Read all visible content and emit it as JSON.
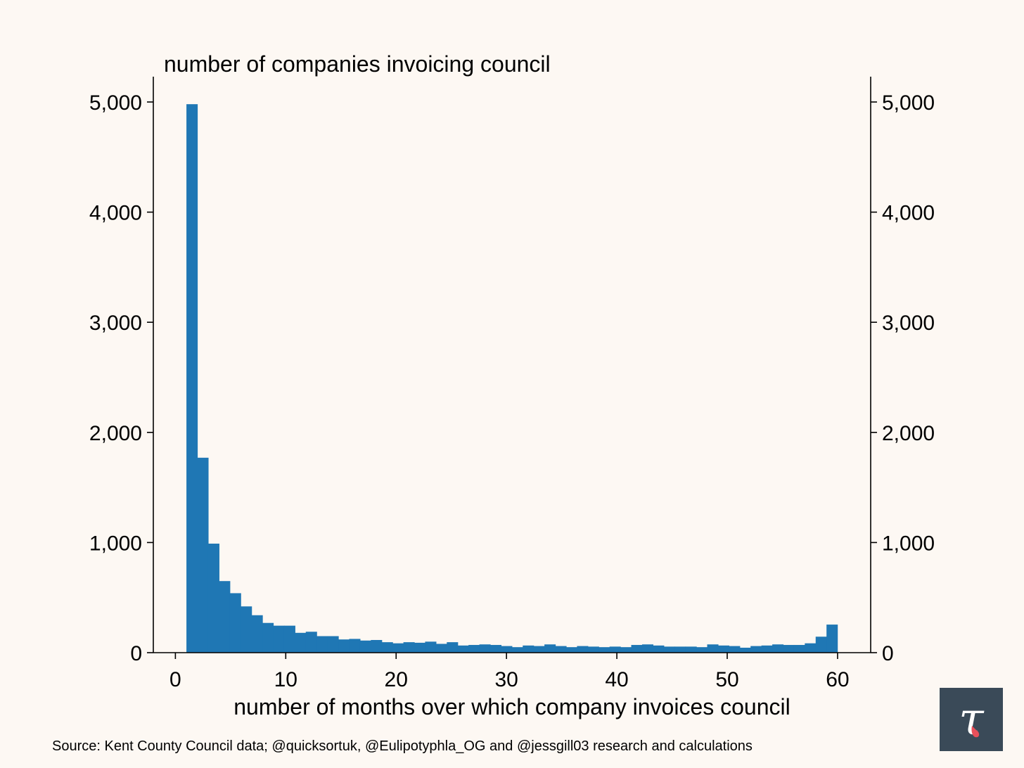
{
  "chart_data": {
    "type": "bar",
    "title": "number of companies invoicing council",
    "xlabel": "number of months over which company invoices council",
    "ylabel": "number of companies invoicing council",
    "xlim": [
      -2,
      63
    ],
    "ylim": [
      0,
      5230
    ],
    "x_ticks": [
      0,
      10,
      20,
      30,
      40,
      50,
      60
    ],
    "x_tick_labels": [
      "0",
      "10",
      "20",
      "30",
      "40",
      "50",
      "60"
    ],
    "y_ticks": [
      0,
      1000,
      2000,
      3000,
      4000,
      5000
    ],
    "y_tick_labels": [
      "0",
      "1,000",
      "2,000",
      "3,000",
      "4,000",
      "5,000"
    ],
    "bin_width": 0.983,
    "bin_start": 1,
    "bar_color": "#1f77b4",
    "values": [
      4980,
      1770,
      990,
      650,
      540,
      420,
      340,
      270,
      245,
      245,
      180,
      190,
      150,
      150,
      120,
      125,
      110,
      115,
      95,
      85,
      95,
      90,
      100,
      80,
      95,
      65,
      70,
      75,
      70,
      60,
      50,
      65,
      60,
      75,
      60,
      50,
      60,
      55,
      50,
      55,
      50,
      70,
      75,
      65,
      55,
      55,
      55,
      50,
      75,
      65,
      60,
      45,
      60,
      65,
      75,
      70,
      70,
      85,
      145,
      255
    ]
  },
  "footer": {
    "source": "Source: Kent County Council data; @quicksortuk, @Eulipotyphla_OG and @jessgill03 research and calculations"
  },
  "logo": {
    "glyph": "τ",
    "bg": "#3a4a58",
    "glyph_color": "#ffffff",
    "accent": "#e8505b"
  }
}
